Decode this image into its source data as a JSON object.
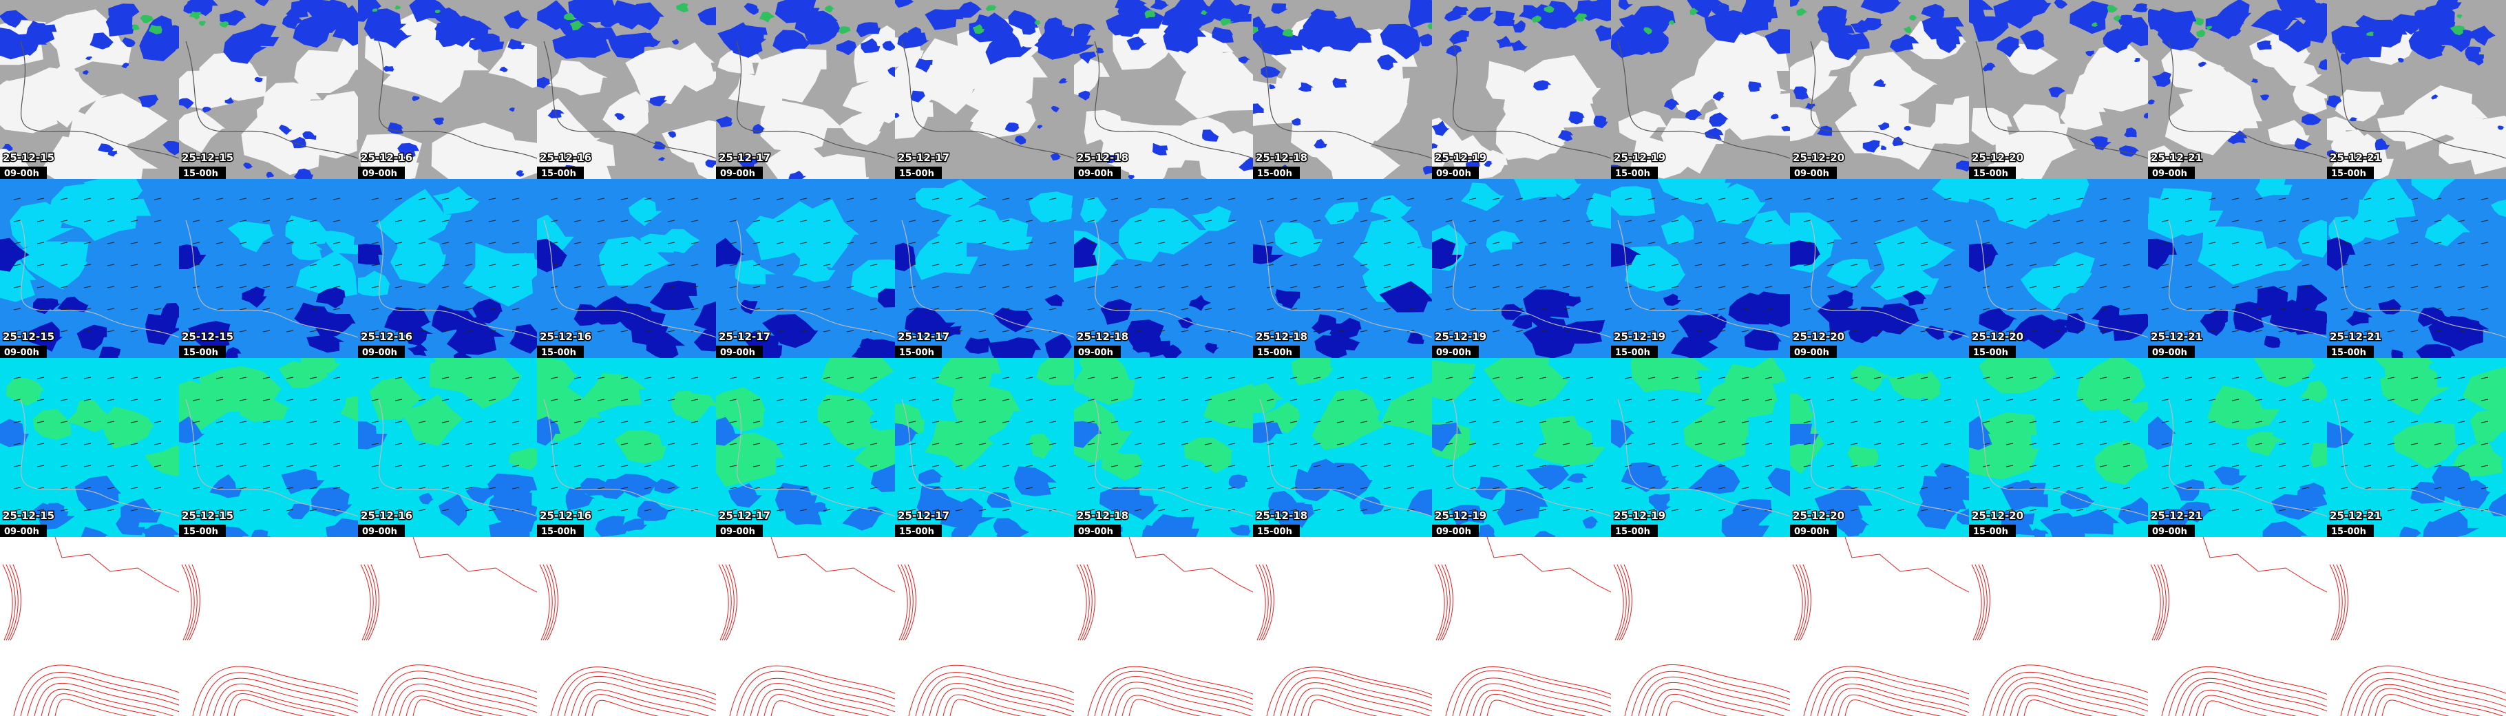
{
  "rows": [
    {
      "labels": [
        {
          "date": "25-12-15",
          "time": "09-00h"
        },
        {
          "date": "25-12-15",
          "time": "15-00h"
        },
        {
          "date": "25-12-16",
          "time": "09-00h"
        },
        {
          "date": "25-12-16",
          "time": "15-00h"
        },
        {
          "date": "25-12-17",
          "time": "09-00h"
        },
        {
          "date": "25-12-17",
          "time": "15-00h"
        },
        {
          "date": "25-12-18",
          "time": "09-00h"
        },
        {
          "date": "25-12-18",
          "time": "15-00h"
        },
        {
          "date": "25-12-19",
          "time": "09-00h"
        },
        {
          "date": "25-12-19",
          "time": "15-00h"
        },
        {
          "date": "25-12-20",
          "time": "09-00h"
        },
        {
          "date": "25-12-20",
          "time": "15-00h"
        },
        {
          "date": "25-12-21",
          "time": "09-00h"
        },
        {
          "date": "25-12-21",
          "time": "15-00h"
        }
      ]
    },
    {
      "labels": [
        {
          "date": "25-12-15",
          "time": "09-00h"
        },
        {
          "date": "25-12-15",
          "time": "15-00h"
        },
        {
          "date": "25-12-16",
          "time": "09-00h"
        },
        {
          "date": "25-12-16",
          "time": "15-00h"
        },
        {
          "date": "25-12-17",
          "time": "09-00h"
        },
        {
          "date": "25-12-17",
          "time": "15-00h"
        },
        {
          "date": "25-12-18",
          "time": "09-00h"
        },
        {
          "date": "25-12-18",
          "time": "15-00h"
        },
        {
          "date": "25-12-19",
          "time": "09-00h"
        },
        {
          "date": "25-12-19",
          "time": "15-00h"
        },
        {
          "date": "25-12-20",
          "time": "09-00h"
        },
        {
          "date": "25-12-20",
          "time": "15-00h"
        },
        {
          "date": "25-12-21",
          "time": "09-00h"
        },
        {
          "date": "25-12-21",
          "time": "15-00h"
        }
      ]
    },
    {
      "labels": [
        {
          "date": "25-12-15",
          "time": "09-00h"
        },
        {
          "date": "25-12-15",
          "time": "15-00h"
        },
        {
          "date": "25-12-16",
          "time": "09-00h"
        },
        {
          "date": "25-12-16",
          "time": "15-00h"
        },
        {
          "date": "25-12-17",
          "time": "09-00h"
        },
        {
          "date": "25-12-17",
          "time": "15-00h"
        },
        {
          "date": "25-12-18",
          "time": "09-00h"
        },
        {
          "date": "25-12-18",
          "time": "15-00h"
        },
        {
          "date": "25-12-19",
          "time": "09-00h"
        },
        {
          "date": "25-12-19",
          "time": "15-00h"
        },
        {
          "date": "25-12-20",
          "time": "09-00h"
        },
        {
          "date": "25-12-20",
          "time": "15-00h"
        },
        {
          "date": "25-12-21",
          "time": "09-00h"
        },
        {
          "date": "25-12-21",
          "time": "15-00h"
        }
      ]
    }
  ]
}
